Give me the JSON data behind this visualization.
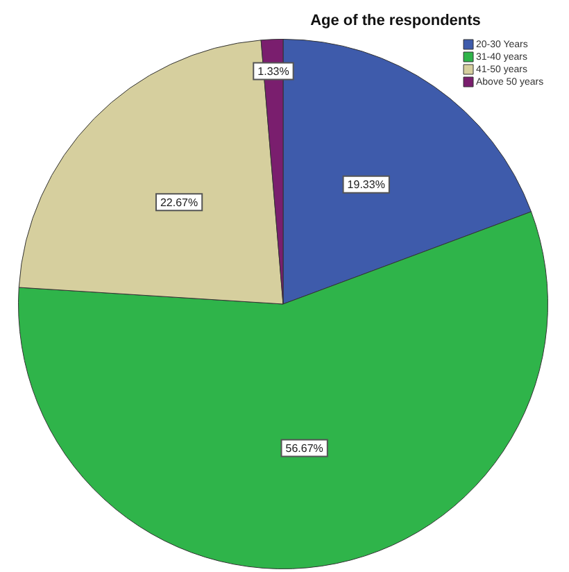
{
  "chart_data": {
    "type": "pie",
    "title": "Age of the respondents",
    "categories": [
      "20-30 Years",
      "31-40 years",
      "41-50 years",
      "Above 50 years"
    ],
    "values": [
      19.33,
      56.67,
      22.67,
      1.33
    ],
    "colors": [
      "#3e5bab",
      "#2fb44a",
      "#d6cf9e",
      "#7a1e6e"
    ],
    "value_labels": [
      "19.33%",
      "56.67%",
      "22.67%",
      "1.33%"
    ],
    "legend": "top right"
  }
}
